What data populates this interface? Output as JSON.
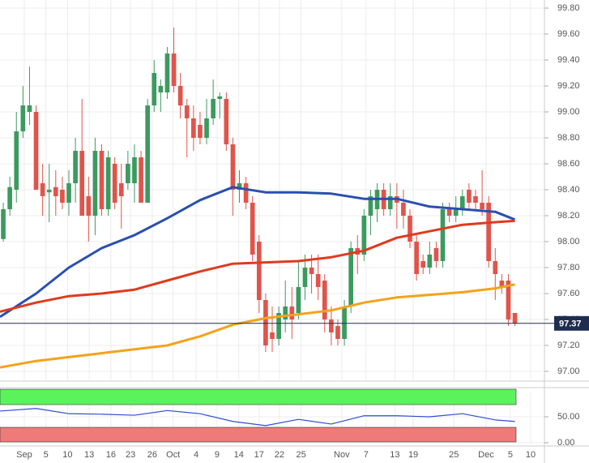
{
  "chart_data": [
    {
      "type": "candlestick",
      "up_color": "#3c9a5f",
      "down_color": "#e0544b",
      "open": [
        98.02,
        98.25,
        98.4,
        98.85,
        99.0,
        99.0,
        98.45,
        98.38,
        98.42,
        98.4,
        98.3,
        98.45,
        98.7,
        98.35,
        98.2,
        98.7,
        98.25,
        98.6,
        98.45,
        98.45,
        98.45,
        98.65,
        98.3,
        99.05,
        99.15,
        99.15,
        99.45,
        99.2,
        99.05,
        98.95,
        98.9,
        98.8,
        98.95,
        99.1,
        99.1,
        98.75,
        98.4,
        98.45,
        98.3,
        98.0,
        97.55,
        97.3,
        97.25,
        97.4,
        97.5,
        97.45,
        97.65,
        97.8,
        97.75,
        97.7,
        97.4,
        97.35,
        97.25,
        97.5,
        97.95,
        97.9,
        98.2,
        98.25,
        98.4,
        98.25,
        98.35,
        98.3,
        98.2,
        98.0,
        97.85,
        97.8,
        97.95,
        97.85,
        98.25,
        98.2,
        98.25,
        98.4,
        98.35,
        98.3,
        98.3,
        97.85,
        97.7,
        97.7,
        97.45
      ],
      "high": [
        98.3,
        98.5,
        99.0,
        99.2,
        99.35,
        99.05,
        98.6,
        98.6,
        98.55,
        98.5,
        98.55,
        98.8,
        99.1,
        98.5,
        98.8,
        98.75,
        98.7,
        98.65,
        98.6,
        98.7,
        98.75,
        98.7,
        99.1,
        99.4,
        99.25,
        99.5,
        99.65,
        99.3,
        99.1,
        99.05,
        99.0,
        99.1,
        99.25,
        99.15,
        99.15,
        98.8,
        98.55,
        98.5,
        98.35,
        98.05,
        97.6,
        97.5,
        97.5,
        97.7,
        97.65,
        97.85,
        97.9,
        97.9,
        97.9,
        97.75,
        97.5,
        97.4,
        97.55,
        98.0,
        98.05,
        98.25,
        98.4,
        98.45,
        98.45,
        98.45,
        98.45,
        98.4,
        98.25,
        98.05,
        97.9,
        98.0,
        98.0,
        98.3,
        98.3,
        98.35,
        98.4,
        98.45,
        98.4,
        98.55,
        98.35,
        97.95,
        97.75,
        97.75,
        97.45
      ],
      "low": [
        98.0,
        98.2,
        98.3,
        98.8,
        98.9,
        98.4,
        98.2,
        98.15,
        98.2,
        98.25,
        98.2,
        98.3,
        98.2,
        98.0,
        98.05,
        98.2,
        98.2,
        98.25,
        98.1,
        98.4,
        98.3,
        98.3,
        98.3,
        99.0,
        99.0,
        99.1,
        99.15,
        98.95,
        98.65,
        98.7,
        98.75,
        98.75,
        98.9,
        98.95,
        98.7,
        98.2,
        98.3,
        98.25,
        97.85,
        97.45,
        97.15,
        97.15,
        97.2,
        97.3,
        97.25,
        97.4,
        97.55,
        97.6,
        97.55,
        97.3,
        97.2,
        97.2,
        97.2,
        97.45,
        97.75,
        97.85,
        98.05,
        98.15,
        98.2,
        98.2,
        98.1,
        98.1,
        97.95,
        97.7,
        97.75,
        97.75,
        97.8,
        97.8,
        98.15,
        98.15,
        98.2,
        98.25,
        98.25,
        98.2,
        97.8,
        97.55,
        97.6,
        97.35,
        97.35
      ],
      "close": [
        98.25,
        98.42,
        98.85,
        99.05,
        99.05,
        98.4,
        98.35,
        98.4,
        98.35,
        98.3,
        98.45,
        98.7,
        98.2,
        98.2,
        98.7,
        98.25,
        98.65,
        98.3,
        98.35,
        98.6,
        98.65,
        98.3,
        99.05,
        99.3,
        99.2,
        99.45,
        99.2,
        99.05,
        98.95,
        98.8,
        98.8,
        98.95,
        99.1,
        99.12,
        98.75,
        98.4,
        98.45,
        98.3,
        97.9,
        97.55,
        97.2,
        97.25,
        97.45,
        97.5,
        97.4,
        97.65,
        97.8,
        97.75,
        97.65,
        97.4,
        97.3,
        97.25,
        97.5,
        97.95,
        97.9,
        98.2,
        98.35,
        98.4,
        98.25,
        98.35,
        98.3,
        98.2,
        98.0,
        97.75,
        97.8,
        97.9,
        97.85,
        98.25,
        98.2,
        98.25,
        98.35,
        98.3,
        98.3,
        98.25,
        97.85,
        97.75,
        97.65,
        97.4,
        97.37
      ],
      "series": [
        {
          "color": "#2a4fb0",
          "x": [
            -0.5,
            5,
            10,
            15,
            20,
            25,
            30,
            35,
            40,
            45,
            50,
            55,
            60,
            65,
            70,
            75,
            78
          ],
          "values": [
            97.42,
            97.6,
            97.8,
            97.95,
            98.05,
            98.18,
            98.32,
            98.42,
            98.38,
            98.38,
            98.37,
            98.33,
            98.33,
            98.27,
            98.25,
            98.23,
            98.17
          ]
        },
        {
          "color": "#e03a1e",
          "x": [
            -0.5,
            5,
            10,
            15,
            20,
            25,
            30,
            35,
            40,
            45,
            50,
            55,
            60,
            65,
            70,
            75,
            78
          ],
          "values": [
            97.46,
            97.53,
            97.58,
            97.6,
            97.63,
            97.7,
            97.77,
            97.83,
            97.84,
            97.85,
            97.88,
            97.93,
            98.03,
            98.08,
            98.13,
            98.15,
            98.16
          ]
        },
        {
          "color": "#f4a21c",
          "x": [
            -0.5,
            5,
            10,
            15,
            20,
            25,
            30,
            35,
            40,
            45,
            50,
            55,
            60,
            65,
            70,
            75,
            78
          ],
          "values": [
            97.03,
            97.08,
            97.11,
            97.14,
            97.17,
            97.2,
            97.27,
            97.36,
            97.41,
            97.44,
            97.47,
            97.53,
            97.57,
            97.59,
            97.61,
            97.64,
            97.67
          ]
        }
      ],
      "last_price": 97.37,
      "xlim": [
        -0.5,
        82.5
      ],
      "xticks": [
        {
          "value": 3.2,
          "label": "Sep"
        },
        {
          "value": 6.5,
          "label": "5"
        },
        {
          "value": 9.8,
          "label": "10"
        },
        {
          "value": 13.1,
          "label": "13"
        },
        {
          "value": 16.4,
          "label": "16"
        },
        {
          "value": 19.4,
          "label": "23"
        },
        {
          "value": 22.7,
          "label": "26"
        },
        {
          "value": 25.9,
          "label": "Oct"
        },
        {
          "value": 29.4,
          "label": "4"
        },
        {
          "value": 32.6,
          "label": "9"
        },
        {
          "value": 35.9,
          "label": "14"
        },
        {
          "value": 39,
          "label": "17"
        },
        {
          "value": 42.1,
          "label": "22"
        },
        {
          "value": 45.4,
          "label": "25"
        },
        {
          "value": 51.6,
          "label": "Nov"
        },
        {
          "value": 55.3,
          "label": "7"
        },
        {
          "value": 59.7,
          "label": "13"
        },
        {
          "value": 62.5,
          "label": "19"
        },
        {
          "value": 68.7,
          "label": "25"
        },
        {
          "value": 73.6,
          "label": "Dec"
        },
        {
          "value": 77.3,
          "label": "5"
        },
        {
          "value": 80.4,
          "label": "10"
        }
      ],
      "ylim": [
        96.925,
        99.8625
      ],
      "yticks": [
        {
          "value": 97.0,
          "label": "97.00"
        },
        {
          "value": 97.2,
          "label": "97.20"
        },
        {
          "value": 97.4,
          "label": "97.40"
        },
        {
          "value": 97.6,
          "label": "97.60"
        },
        {
          "value": 97.8,
          "label": "97.80"
        },
        {
          "value": 98.0,
          "label": "98.00"
        },
        {
          "value": 98.2,
          "label": "98.20"
        },
        {
          "value": 98.4,
          "label": "98.40"
        },
        {
          "value": 98.6,
          "label": "98.60"
        },
        {
          "value": 98.8,
          "label": "98.80"
        },
        {
          "value": 99.0,
          "label": "99.00"
        },
        {
          "value": 99.2,
          "label": "99.20"
        },
        {
          "value": 99.4,
          "label": "99.40"
        },
        {
          "value": 99.6,
          "label": "99.60"
        },
        {
          "value": 99.8,
          "label": "99.80"
        }
      ],
      "grid": true
    },
    {
      "type": "line",
      "series": [
        {
          "color": "#2f4fd0",
          "x": [
            -0.5,
            5,
            10,
            15,
            20,
            25,
            30,
            35,
            40,
            45,
            50,
            55,
            60,
            65,
            70,
            75,
            78
          ],
          "values": [
            61,
            66,
            56,
            55,
            53,
            62,
            56,
            41,
            33,
            45,
            36,
            52,
            52,
            50,
            56,
            44,
            41
          ]
        }
      ],
      "xlim": [
        -0.5,
        82.5
      ],
      "ylim": [
        0,
        100
      ],
      "yticks": [
        {
          "value": 0,
          "label": "0.00"
        },
        {
          "value": 50,
          "label": "50.00"
        }
      ],
      "grid": true
    }
  ]
}
